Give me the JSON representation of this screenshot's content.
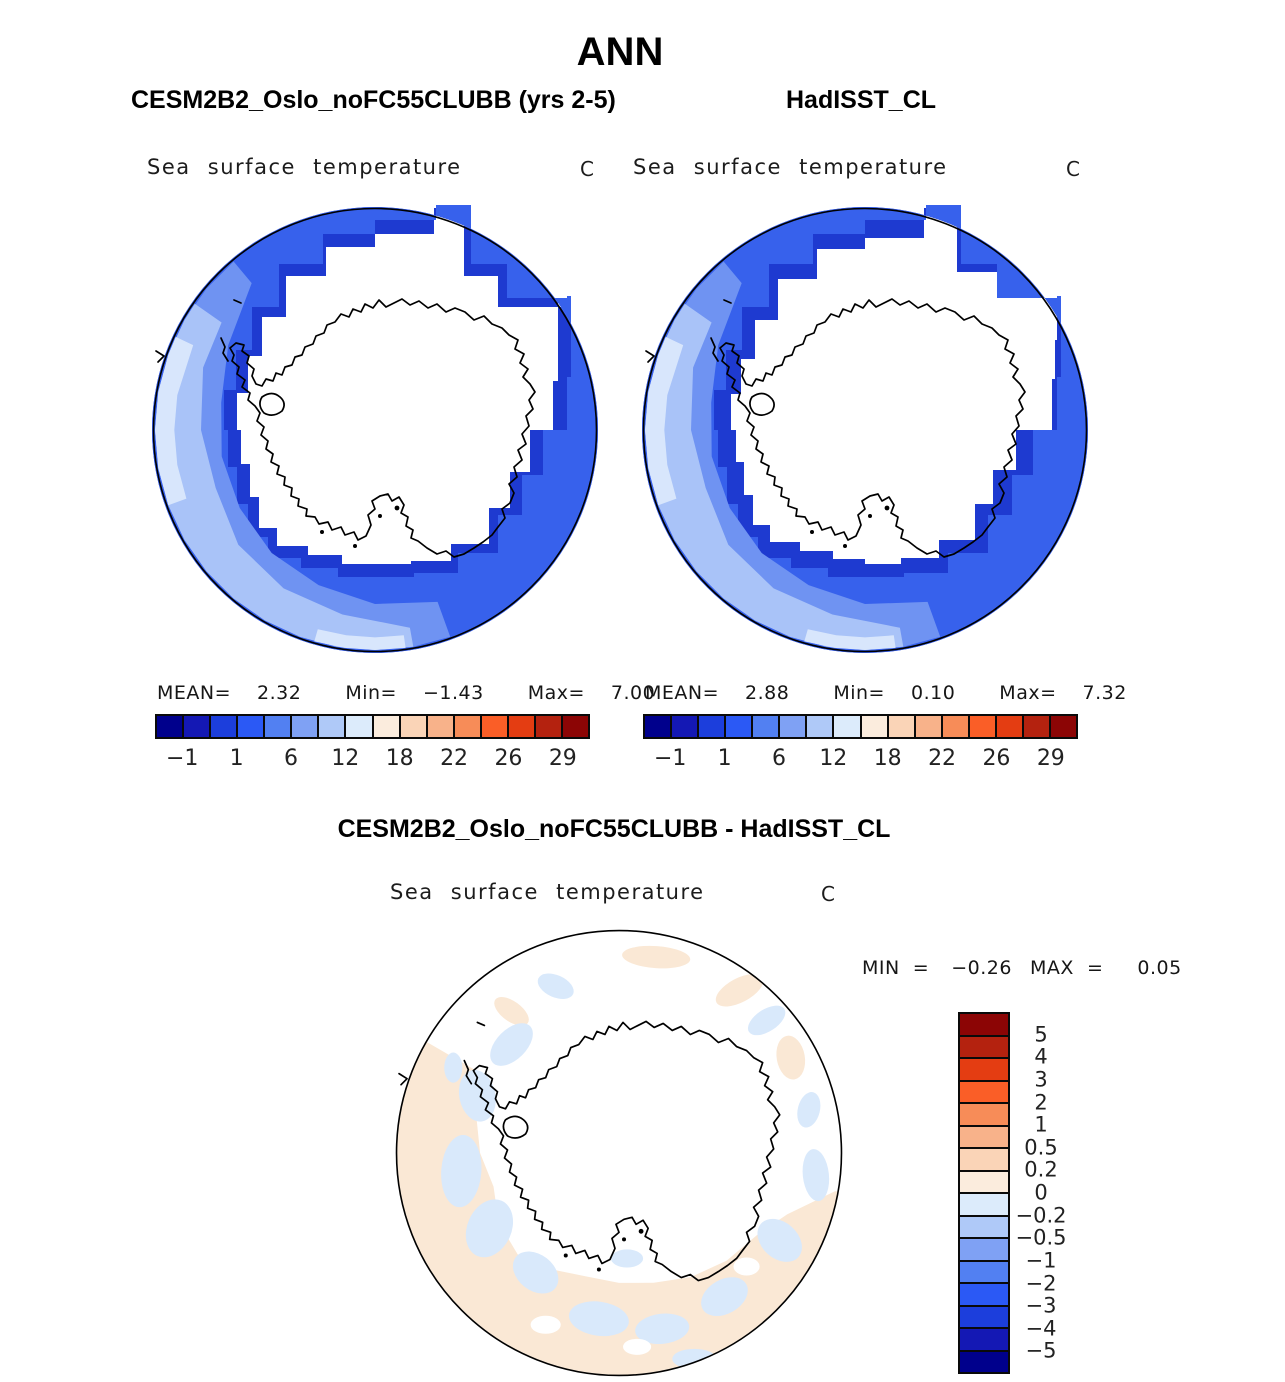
{
  "page": {
    "title": "ANN"
  },
  "panels": {
    "model": {
      "title": "CESM2B2_Oslo_noFC55CLUBB (yrs 2-5)",
      "field_label": "Sea surface temperature",
      "units": "C",
      "stats": [
        {
          "label": "MEAN=",
          "value": "2.32"
        },
        {
          "label": "Min=",
          "value": "−1.43"
        },
        {
          "label": "Max=",
          "value": "7.00"
        }
      ]
    },
    "obs": {
      "title": "HadISST_CL",
      "field_label": "Sea surface temperature",
      "units": "C",
      "stats": [
        {
          "label": "MEAN=",
          "value": "2.88"
        },
        {
          "label": "Min=",
          "value": "0.10"
        },
        {
          "label": "Max=",
          "value": "7.32"
        }
      ]
    },
    "diff": {
      "title": "CESM2B2_Oslo_noFC55CLUBB - HadISST_CL",
      "field_label": "Sea surface temperature",
      "units": "C",
      "stats": [
        {
          "label": "MIN  =",
          "value": "−0.26"
        },
        {
          "label": "MAX  =",
          "value": "0.05"
        }
      ]
    }
  },
  "colorbar": {
    "colors": [
      "#00008C",
      "#1418B4",
      "#1C3EDC",
      "#2B59F5",
      "#5280F2",
      "#7FA1F4",
      "#AFC9F8",
      "#DCEBFB",
      "#FBECDD",
      "#FAD4B7",
      "#F8B28A",
      "#F78C58",
      "#FA5E27",
      "#E43D12",
      "#B4220F",
      "#8C0505"
    ],
    "tick_labels": [
      "−1",
      "1",
      "6",
      "12",
      "18",
      "22",
      "26",
      "29"
    ]
  },
  "diff_colorbar": {
    "colors": [
      "#8C0505",
      "#B4220F",
      "#E43D12",
      "#FA5E27",
      "#F78C58",
      "#F8B28A",
      "#FAD4B7",
      "#FBECDD",
      "#DCEBFB",
      "#AFC9F8",
      "#7FA1F4",
      "#5280F2",
      "#2B59F5",
      "#1C3EDC",
      "#1418B4",
      "#00008C"
    ],
    "tick_labels": [
      "5",
      "4",
      "3",
      "2",
      "1",
      "0.5",
      "0.2",
      "0",
      "−0.2",
      "−0.5",
      "−1",
      "−2",
      "−3",
      "−4",
      "−5"
    ]
  },
  "map_colors": {
    "ring_base": "#1E3AD0",
    "ring_mid": "#3761EC",
    "ring_light": "#6F93F2",
    "ring_lighter": "#A9C3F8",
    "ring_palest": "#D8E6FC",
    "diff_warm": "#FAE8D5",
    "diff_cool": "#D9E9FB",
    "coastline": "#000000"
  },
  "chart_data": [
    {
      "type": "heatmap",
      "subtype": "south-polar-stereographic-map",
      "title": "CESM2B2_Oslo_noFC55CLUBB (yrs 2-5)",
      "variable": "Sea surface temperature",
      "units": "C",
      "stats": {
        "mean": 2.32,
        "min": -1.43,
        "max": 7.0
      },
      "contour_level_labels": [
        -1,
        1,
        6,
        12,
        18,
        22,
        26,
        29
      ],
      "palette": "16-step blue-to-dark-red",
      "legend_position": "below"
    },
    {
      "type": "heatmap",
      "subtype": "south-polar-stereographic-map",
      "title": "HadISST_CL",
      "variable": "Sea surface temperature",
      "units": "C",
      "stats": {
        "mean": 2.88,
        "min": 0.1,
        "max": 7.32
      },
      "contour_level_labels": [
        -1,
        1,
        6,
        12,
        18,
        22,
        26,
        29
      ],
      "palette": "16-step blue-to-dark-red",
      "legend_position": "below"
    },
    {
      "type": "heatmap",
      "subtype": "south-polar-stereographic-map",
      "title": "CESM2B2_Oslo_noFC55CLUBB - HadISST_CL",
      "variable": "Sea surface temperature",
      "units": "C",
      "stats": {
        "min": -0.26,
        "max": 0.05
      },
      "contour_level_labels": [
        5,
        4,
        3,
        2,
        1,
        0.5,
        0.2,
        0,
        -0.2,
        -0.5,
        -1,
        -2,
        -3,
        -4,
        -5
      ],
      "palette": "16-step dark-red-to-blue (vertical bar, red on top)",
      "legend_position": "right"
    }
  ]
}
